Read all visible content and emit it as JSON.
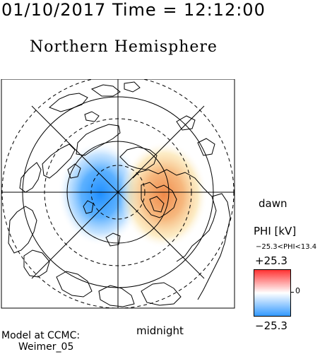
{
  "header": {
    "time": "01/10/2017 Time = 12:12:00",
    "hemisphere": "Northern Hemisphere"
  },
  "map": {
    "dawn_label": "dawn",
    "midnight_label": "midnight"
  },
  "legend": {
    "title": "PHI [kV]",
    "range_text": "−25.3<PHI<13.4",
    "max_label": "+25.3",
    "min_label": "−25.3",
    "zero_label": "0",
    "colors": [
      "#3399ff",
      "#ffffff",
      "#ff3333"
    ]
  },
  "model": {
    "line1": "Model at CCMC:",
    "line2": "Weimer_05"
  }
}
